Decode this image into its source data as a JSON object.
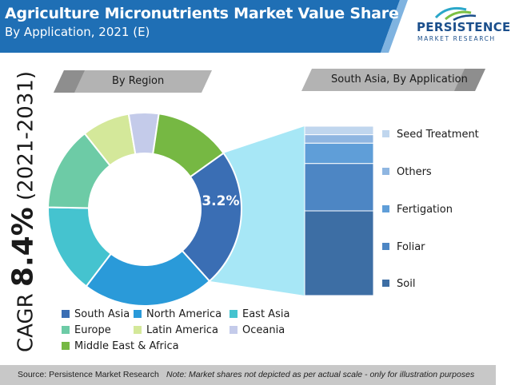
{
  "header": {
    "title": "Agriculture Micronutrients Market Value Share (%)",
    "subtitle": "By Application, 2021 (E)"
  },
  "logo": {
    "top": "PERSISTENCE",
    "bottom": "MARKET RESEARCH"
  },
  "cagr": {
    "prefix": "CAGR ",
    "value": "8.4%",
    "suffix": " (2021-2031)"
  },
  "region_tag": "By Region",
  "application_tag": "South Asia, By Application",
  "highlight_label": "23.2%",
  "colors": {
    "header_band": "#1f6fb5",
    "tag_gray": "#b3b3b3",
    "footer": "#c8c8c8"
  },
  "chart_data": [
    {
      "type": "pie",
      "subtype": "donut",
      "title": "By Region",
      "slices": [
        {
          "name": "South Asia",
          "value": 23.2,
          "color": "#3a6eb4",
          "label": "23.2%"
        },
        {
          "name": "North America",
          "value": 22,
          "color": "#2a9ad9"
        },
        {
          "name": "East Asia",
          "value": 15,
          "color": "#45c3cf"
        },
        {
          "name": "Europe",
          "value": 14,
          "color": "#6dcba6"
        },
        {
          "name": "Latin America",
          "value": 8,
          "color": "#d4e89a"
        },
        {
          "name": "Oceania",
          "value": 5,
          "color": "#c4cbea"
        },
        {
          "name": "Middle East & Africa",
          "value": 12.8,
          "color": "#76b843"
        }
      ],
      "start_angle_deg": 0,
      "legend": "bottom"
    },
    {
      "type": "bar",
      "subtype": "stacked",
      "title": "South Asia, By Application",
      "segments": [
        {
          "name": "Soil",
          "value": 50,
          "color": "#3d6ea4"
        },
        {
          "name": "Foliar",
          "value": 28,
          "color": "#4d86c4"
        },
        {
          "name": "Fertigation",
          "value": 12,
          "color": "#5f9ed8"
        },
        {
          "name": "Others",
          "value": 5,
          "color": "#8fb6e1"
        },
        {
          "name": "Seed Treatment",
          "value": 5,
          "color": "#c0d6ee"
        }
      ],
      "legend": "right"
    }
  ],
  "legend": {
    "region_items": [
      {
        "label": "South Asia",
        "color": "#3a6eb4"
      },
      {
        "label": "North America",
        "color": "#2a9ad9"
      },
      {
        "label": "East Asia",
        "color": "#45c3cf"
      },
      {
        "label": "Europe",
        "color": "#6dcba6"
      },
      {
        "label": "Latin America",
        "color": "#d4e89a"
      },
      {
        "label": "Oceania",
        "color": "#c4cbea"
      },
      {
        "label": "Middle East & Africa",
        "color": "#76b843"
      }
    ],
    "application_items": [
      {
        "label": "Seed Treatment",
        "color": "#c0d6ee"
      },
      {
        "label": "Others",
        "color": "#8fb6e1"
      },
      {
        "label": "Fertigation",
        "color": "#5f9ed8"
      },
      {
        "label": "Foliar",
        "color": "#4d86c4"
      },
      {
        "label": "Soil",
        "color": "#3d6ea4"
      }
    ]
  },
  "footer": {
    "source": "Source: Persistence Market Research",
    "note": "Note: Market shares not depicted as per actual scale - only for illustration purposes"
  }
}
